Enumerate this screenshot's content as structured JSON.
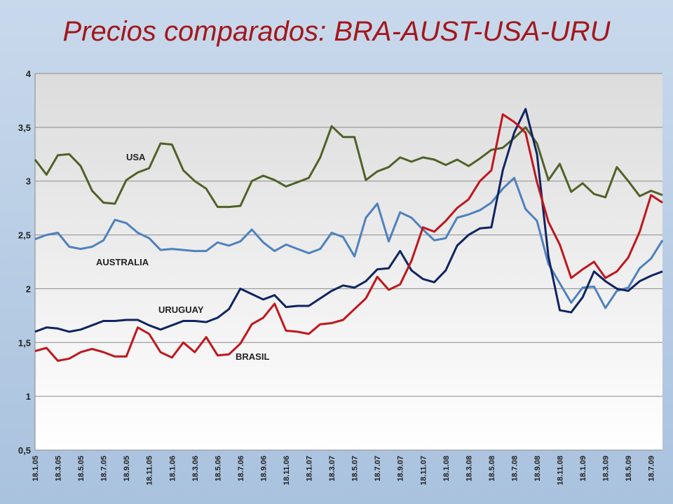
{
  "chart_data": {
    "type": "line",
    "title": "Precios comparados: BRA-AUST-USA-URU",
    "categories": [
      "18.1.05",
      null,
      "18.3.05",
      null,
      "18.5.05",
      null,
      "18.7.05",
      null,
      "18.9.05",
      null,
      "18.11.05",
      null,
      "18.1.06",
      null,
      "18.3.06",
      null,
      "18.5.06",
      null,
      "18.7.06",
      null,
      "18.9.06",
      null,
      "18.11.06",
      null,
      "18.1.07",
      null,
      "18.3.07",
      null,
      "18.5.07",
      null,
      "18.7.07",
      null,
      "18.9.07",
      null,
      "18.11.07",
      null,
      "18.1.08",
      null,
      "18.3.08",
      null,
      "18.5.08",
      null,
      "18.7.08",
      null,
      "18.9.08",
      null,
      "18.11.08",
      null,
      "18.1.09",
      null,
      "18.3.09",
      null,
      "18.5.09",
      null,
      "18.7.09",
      null
    ],
    "series": [
      {
        "name": "USA",
        "color": "#4f6228",
        "values": [
          3.2,
          3.06,
          3.24,
          3.25,
          3.14,
          2.91,
          2.8,
          2.79,
          3.01,
          3.08,
          3.12,
          3.35,
          3.34,
          3.1,
          3.0,
          2.93,
          2.76,
          2.76,
          2.77,
          3.0,
          3.05,
          3.01,
          2.95,
          2.99,
          3.03,
          3.22,
          3.51,
          3.41,
          3.41,
          3.01,
          3.09,
          3.13,
          3.22,
          3.18,
          3.22,
          3.2,
          3.15,
          3.2,
          3.14,
          3.21,
          3.29,
          3.31,
          3.4,
          3.5,
          3.35,
          3.01,
          3.16,
          2.9,
          2.98,
          2.88,
          2.85,
          3.13,
          3.0,
          2.86,
          2.91,
          2.87
        ]
      },
      {
        "name": "AUSTRALIA",
        "color": "#4f81bd",
        "values": [
          2.46,
          2.5,
          2.52,
          2.39,
          2.37,
          2.39,
          2.45,
          2.64,
          2.61,
          2.52,
          2.47,
          2.36,
          2.37,
          2.36,
          2.35,
          2.35,
          2.43,
          2.4,
          2.44,
          2.55,
          2.43,
          2.35,
          2.41,
          2.37,
          2.33,
          2.37,
          2.52,
          2.48,
          2.3,
          2.66,
          2.79,
          2.44,
          2.71,
          2.66,
          2.55,
          2.45,
          2.47,
          2.66,
          2.69,
          2.73,
          2.8,
          2.93,
          3.03,
          2.74,
          2.63,
          2.23,
          2.05,
          1.87,
          2.01,
          2.02,
          1.82,
          1.98,
          2.01,
          2.19,
          2.28,
          2.45
        ]
      },
      {
        "name": "URUGUAY",
        "color": "#0f2460",
        "values": [
          1.6,
          1.64,
          1.63,
          1.6,
          1.62,
          1.66,
          1.7,
          1.7,
          1.71,
          1.71,
          1.66,
          1.62,
          1.66,
          1.7,
          1.7,
          1.69,
          1.73,
          1.81,
          2.0,
          1.95,
          1.9,
          1.94,
          1.83,
          1.84,
          1.84,
          1.91,
          1.98,
          2.03,
          2.01,
          2.07,
          2.18,
          2.19,
          2.35,
          2.17,
          2.09,
          2.06,
          2.17,
          2.4,
          2.5,
          2.56,
          2.57,
          3.1,
          3.45,
          3.67,
          3.25,
          2.3,
          1.8,
          1.78,
          1.92,
          2.16,
          2.07,
          2.0,
          1.98,
          2.07,
          2.12,
          2.16
        ]
      },
      {
        "name": "BRASIL",
        "color": "#c0161d",
        "values": [
          1.42,
          1.45,
          1.33,
          1.35,
          1.41,
          1.44,
          1.41,
          1.37,
          1.37,
          1.64,
          1.58,
          1.41,
          1.36,
          1.5,
          1.41,
          1.55,
          1.38,
          1.39,
          1.49,
          1.67,
          1.73,
          1.86,
          1.61,
          1.6,
          1.58,
          1.67,
          1.68,
          1.71,
          1.81,
          1.91,
          2.11,
          1.99,
          2.04,
          2.26,
          2.57,
          2.53,
          2.63,
          2.75,
          2.83,
          3.0,
          3.1,
          3.62,
          3.55,
          3.45,
          2.99,
          2.62,
          2.41,
          2.1,
          2.18,
          2.25,
          2.1,
          2.16,
          2.29,
          2.53,
          2.87,
          2.8
        ]
      }
    ],
    "ylim": [
      0.5,
      4
    ],
    "yticks": [
      {
        "value": 0.5,
        "label": "0,5"
      },
      1,
      {
        "value": 1.5,
        "label": "1,5"
      },
      2,
      {
        "value": 2.5,
        "label": "2,5"
      },
      3,
      {
        "value": 3.5,
        "label": "3,5"
      },
      4
    ],
    "grid": true
  }
}
